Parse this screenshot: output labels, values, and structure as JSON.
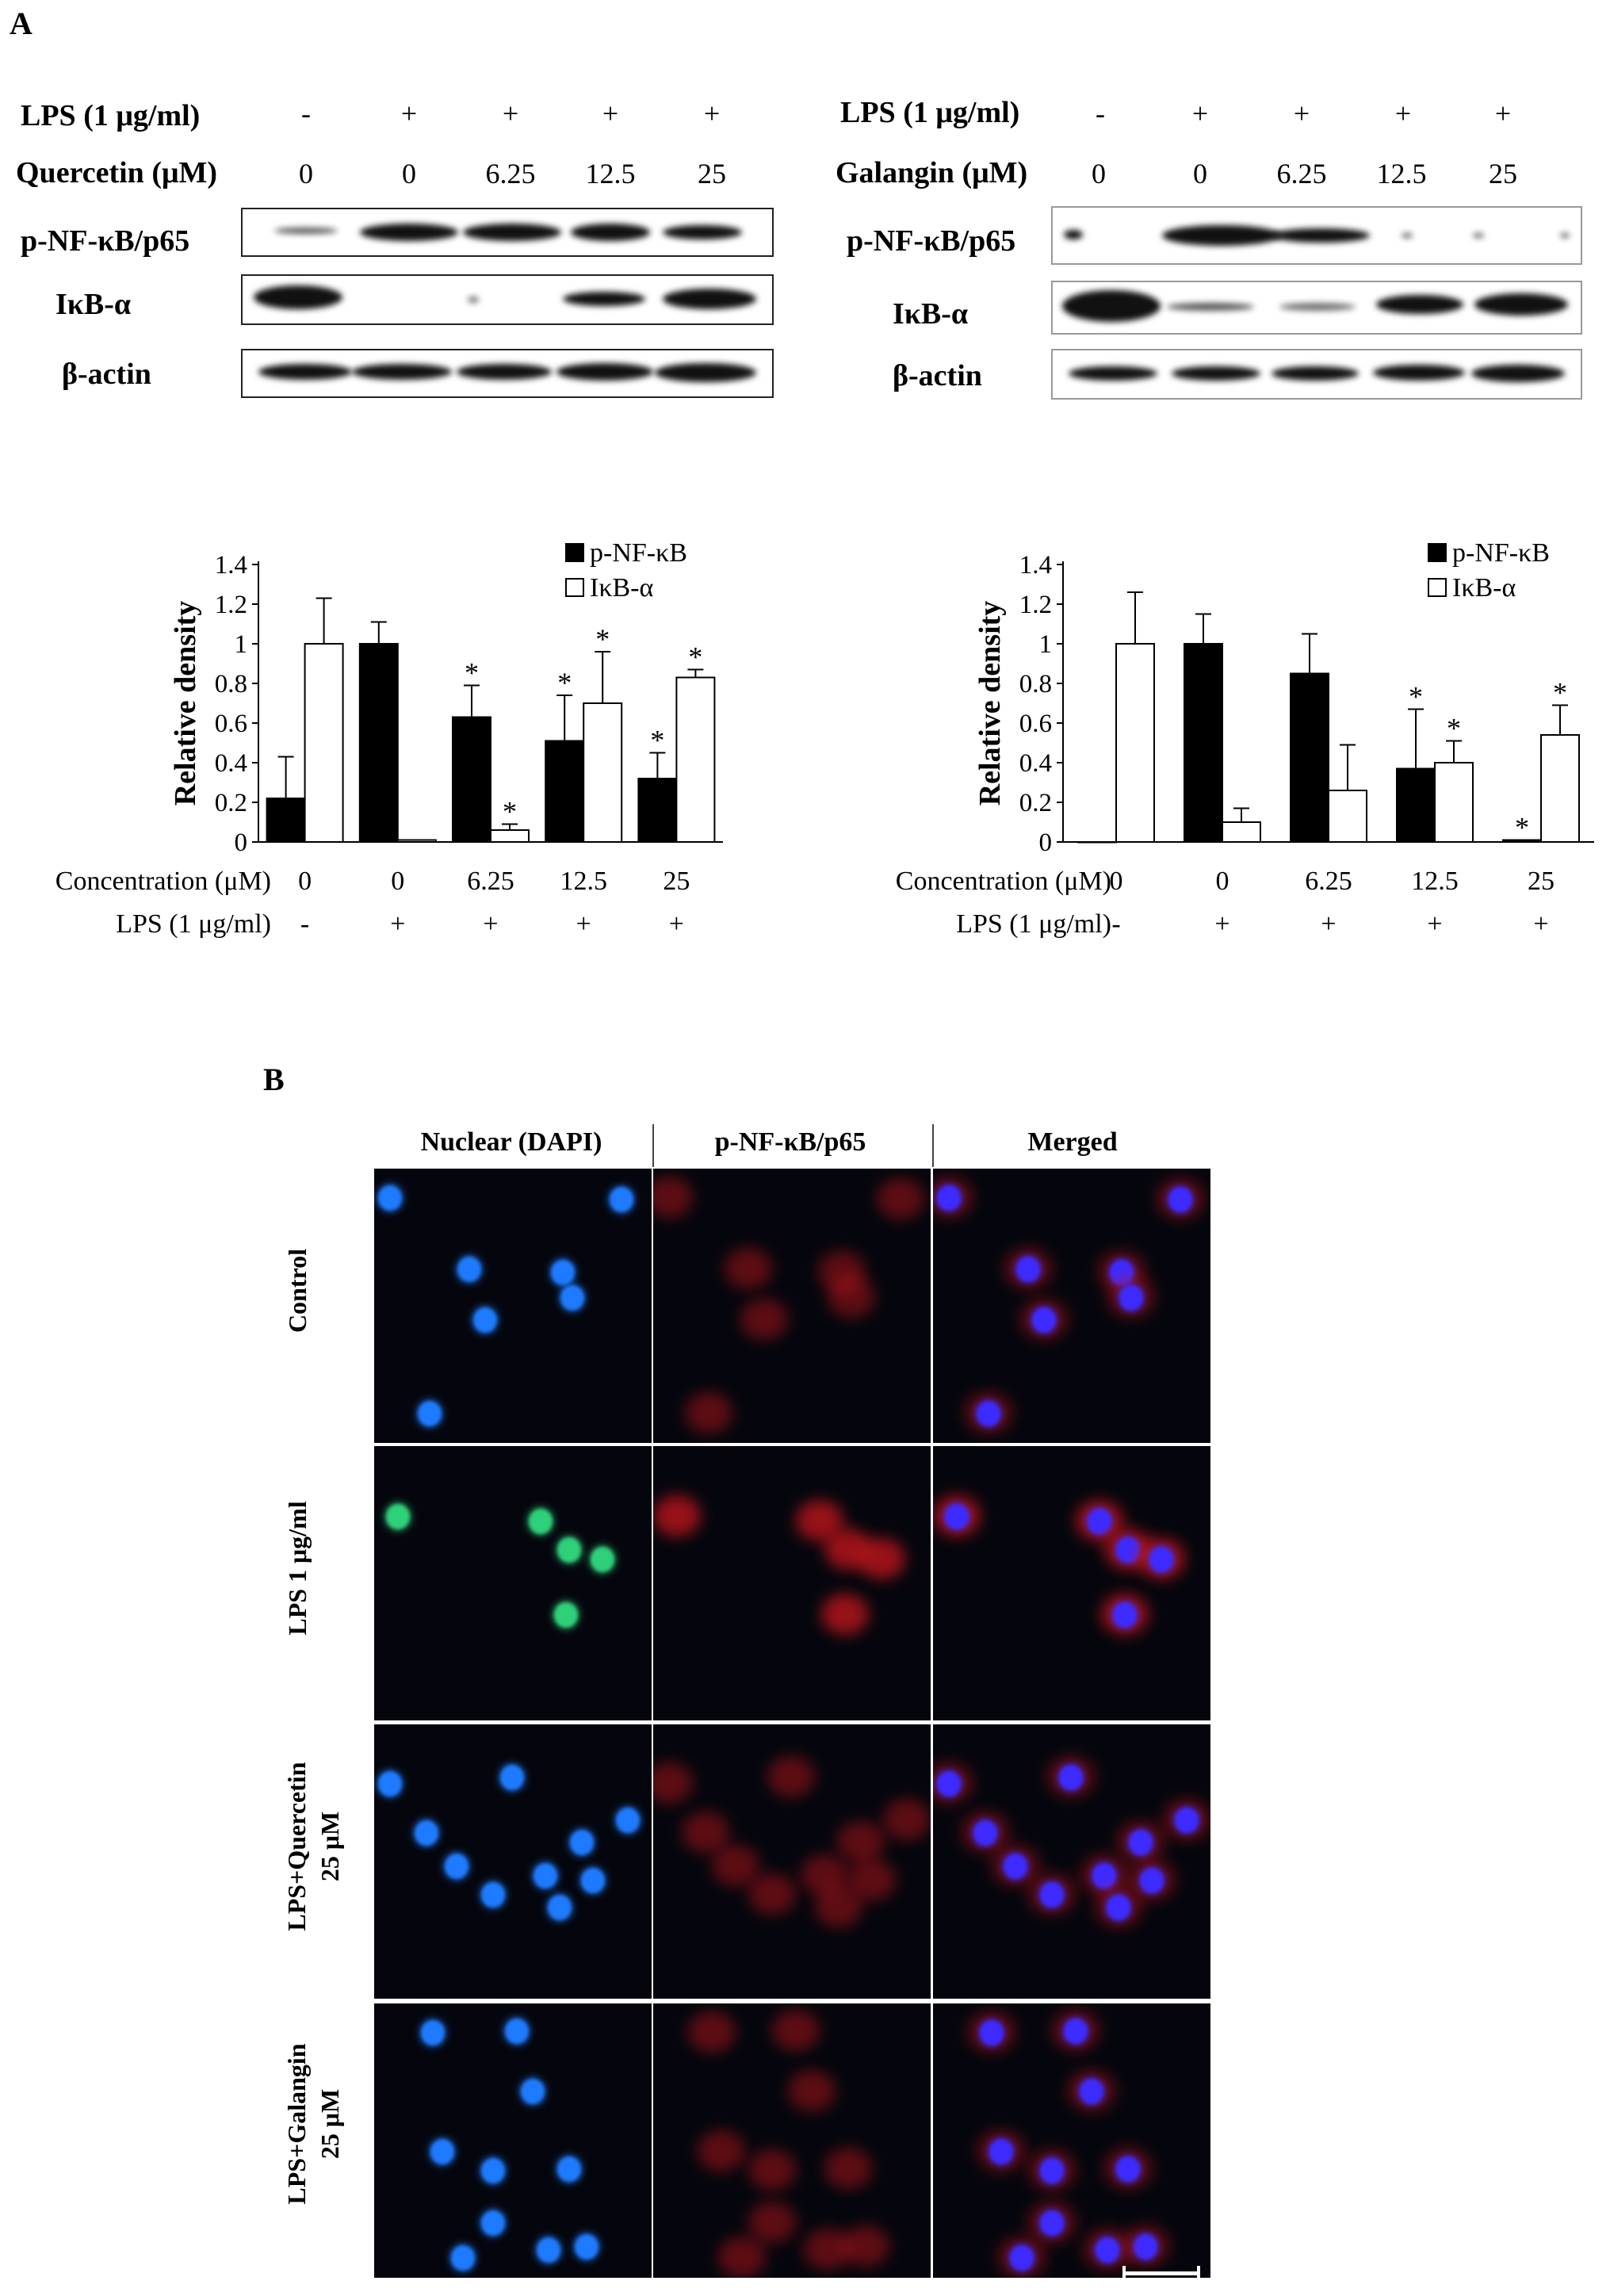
{
  "panel_a": {
    "letter": "A",
    "quercetin_blot": {
      "row_lps_label": "LPS (1 μg/ml)",
      "lps_values": [
        "-",
        "+",
        "+",
        "+",
        "+"
      ],
      "row_dose_label": "Quercetin (μM)",
      "dose_values": [
        "0",
        "0",
        "6.25",
        "12.5",
        "25"
      ],
      "bands": [
        "p-NF-κB/p65",
        "IκB-α",
        "β-actin"
      ]
    },
    "galangin_blot": {
      "row_lps_label": "LPS (1 μg/ml)",
      "lps_values": [
        "-",
        "+",
        "+",
        "+",
        "+"
      ],
      "row_dose_label": "Galangin (μM)",
      "dose_values": [
        "0",
        "0",
        "6.25",
        "12.5",
        "25"
      ],
      "bands": [
        "p-NF-κB/p65",
        "IκB-α",
        "β-actin"
      ]
    }
  },
  "chart_data": [
    {
      "type": "bar",
      "ylabel": "Relative density",
      "ylim": [
        0,
        1.4
      ],
      "yticks": [
        "0",
        "0.2",
        "0.4",
        "0.6",
        "0.8",
        "1",
        "1.2",
        "1.4"
      ],
      "row1_label": "Concentration (μM)",
      "categories": [
        "0",
        "0",
        "6.25",
        "12.5",
        "25"
      ],
      "row2_label": "LPS (1 μg/ml)",
      "lps": [
        "-",
        "+",
        "+",
        "+",
        "+"
      ],
      "legend_position": "top-right",
      "series": [
        {
          "name": "p-NF-κB",
          "color": "#000000",
          "values": [
            0.22,
            1.0,
            0.63,
            0.51,
            0.32
          ],
          "errors": [
            0.21,
            0.11,
            0.16,
            0.23,
            0.13
          ],
          "significant": [
            false,
            false,
            true,
            true,
            true
          ]
        },
        {
          "name": "IκB-α",
          "color": "#ffffff",
          "values": [
            1.0,
            0.01,
            0.06,
            0.7,
            0.83
          ],
          "errors": [
            0.23,
            0.0,
            0.03,
            0.26,
            0.04
          ],
          "significant": [
            false,
            false,
            true,
            true,
            true
          ]
        }
      ],
      "significance_mark": "*"
    },
    {
      "type": "bar",
      "ylabel": "Relative density",
      "ylim": [
        0,
        1.4
      ],
      "yticks": [
        "0",
        "0.2",
        "0.4",
        "0.6",
        "0.8",
        "1",
        "1.2",
        "1.4"
      ],
      "row1_label": "Concentration (μM)",
      "categories": [
        "0",
        "0",
        "6.25",
        "12.5",
        "25"
      ],
      "row2_label": "LPS (1 μg/ml)",
      "lps": [
        "-",
        "+",
        "+",
        "+",
        "+"
      ],
      "legend_position": "top-right",
      "series": [
        {
          "name": "p-NF-κB",
          "color": "#000000",
          "values": [
            0.0,
            1.0,
            0.85,
            0.37,
            0.01
          ],
          "errors": [
            0.0,
            0.15,
            0.2,
            0.3,
            0.0
          ],
          "significant": [
            false,
            false,
            false,
            true,
            true
          ]
        },
        {
          "name": "IκB-α",
          "color": "#ffffff",
          "values": [
            1.0,
            0.1,
            0.26,
            0.4,
            0.54
          ],
          "errors": [
            0.26,
            0.07,
            0.23,
            0.11,
            0.15
          ],
          "significant": [
            false,
            false,
            false,
            true,
            true
          ]
        }
      ],
      "significance_mark": "*"
    }
  ],
  "panel_b": {
    "letter": "B",
    "columns": [
      "Nuclear (DAPI)",
      "p-NF-κB/p65",
      "Merged"
    ],
    "rows": [
      {
        "line1": "Control",
        "line2": ""
      },
      {
        "line1": "LPS 1 μg/ml",
        "line2": ""
      },
      {
        "line1": "LPS+Quercetin",
        "line2": "25 μM"
      },
      {
        "line1": "LPS+Galangin",
        "line2": "25 μM"
      }
    ],
    "channel_colors": {
      "dapi": "#1e7bff",
      "dapi_lps": "#2fd07a",
      "p65": "#c8161d",
      "merged_nucleus": "#3d2bff",
      "background": "#05060d"
    }
  }
}
